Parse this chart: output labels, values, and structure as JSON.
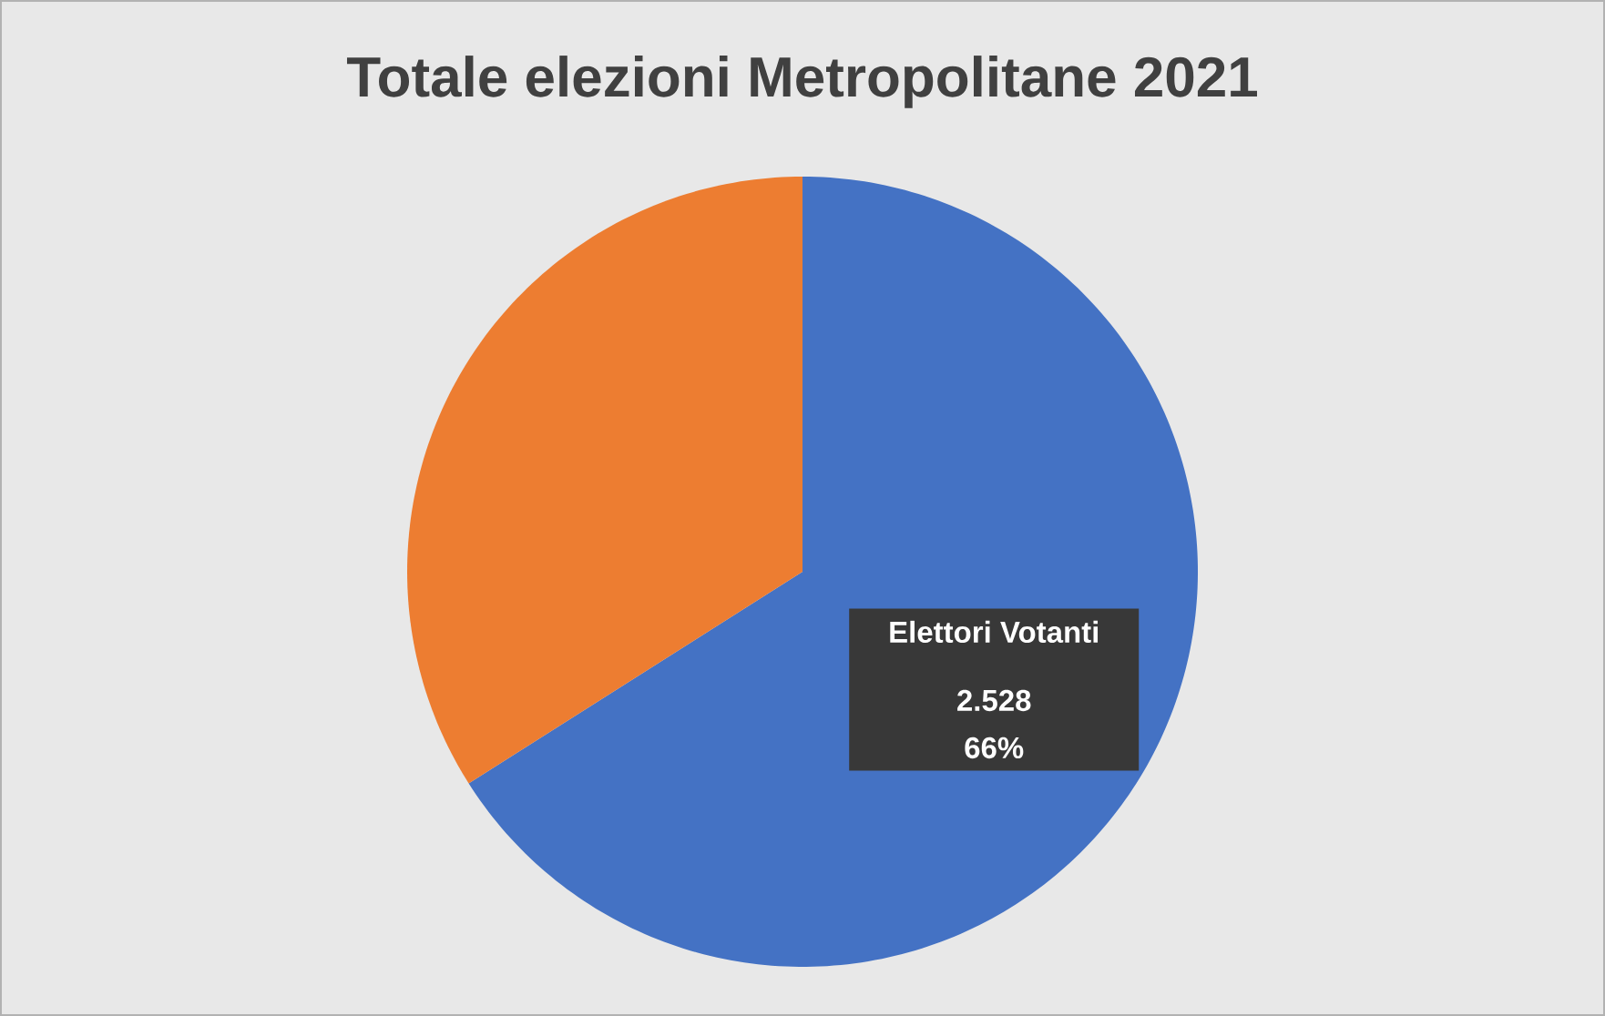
{
  "chart_data": {
    "type": "pie",
    "title": "Totale elezioni Metropolitane 2021",
    "categories": [
      "Elettori Votanti",
      null
    ],
    "values": [
      66,
      34
    ],
    "colors": [
      "#4472c4",
      "#ed7d31"
    ],
    "value_labels": [
      "2.528 66%",
      null
    ]
  }
}
